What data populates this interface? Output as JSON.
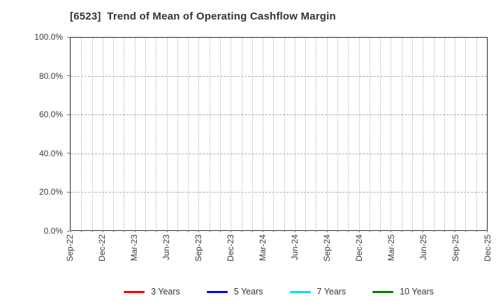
{
  "title": "[6523]  Trend of Mean of Operating Cashflow Margin",
  "chart_data": {
    "type": "line",
    "title": "[6523]  Trend of Mean of Operating Cashflow Margin",
    "x_axis": {
      "label": "",
      "unit": "month",
      "start": "Sep-22",
      "end": "Dec-25",
      "n_month_positions": 40,
      "tick_labels": [
        "Sep-22",
        "Dec-22",
        "Mar-23",
        "Jun-23",
        "Sep-23",
        "Dec-23",
        "Mar-24",
        "Jun-24",
        "Sep-24",
        "Dec-24",
        "Mar-25",
        "Jun-25",
        "Sep-25",
        "Dec-25"
      ],
      "tick_month_indices": [
        0,
        3,
        6,
        9,
        12,
        15,
        18,
        21,
        24,
        27,
        30,
        33,
        36,
        39
      ]
    },
    "y_axis": {
      "label": "",
      "min": 0,
      "max": 100,
      "tick_values": [
        0,
        20,
        40,
        60,
        80,
        100
      ],
      "tick_labels": [
        "0.0%",
        "20.0%",
        "40.0%",
        "60.0%",
        "80.0%",
        "100.0%"
      ]
    },
    "grid": {
      "vertical": "monthly dotted",
      "horizontal": "dashed at each 20%",
      "color": "#b4b4b4"
    },
    "series": [
      {
        "name": "3 Years",
        "color": "#ff0000",
        "values": []
      },
      {
        "name": "5 Years",
        "color": "#0000ff",
        "values": []
      },
      {
        "name": "7 Years",
        "color": "#00e5ee",
        "values": []
      },
      {
        "name": "10 Years",
        "color": "#008000",
        "values": []
      }
    ],
    "legend_position": "bottom-center",
    "note": "plot area contains gridlines only; no data lines are drawn"
  }
}
